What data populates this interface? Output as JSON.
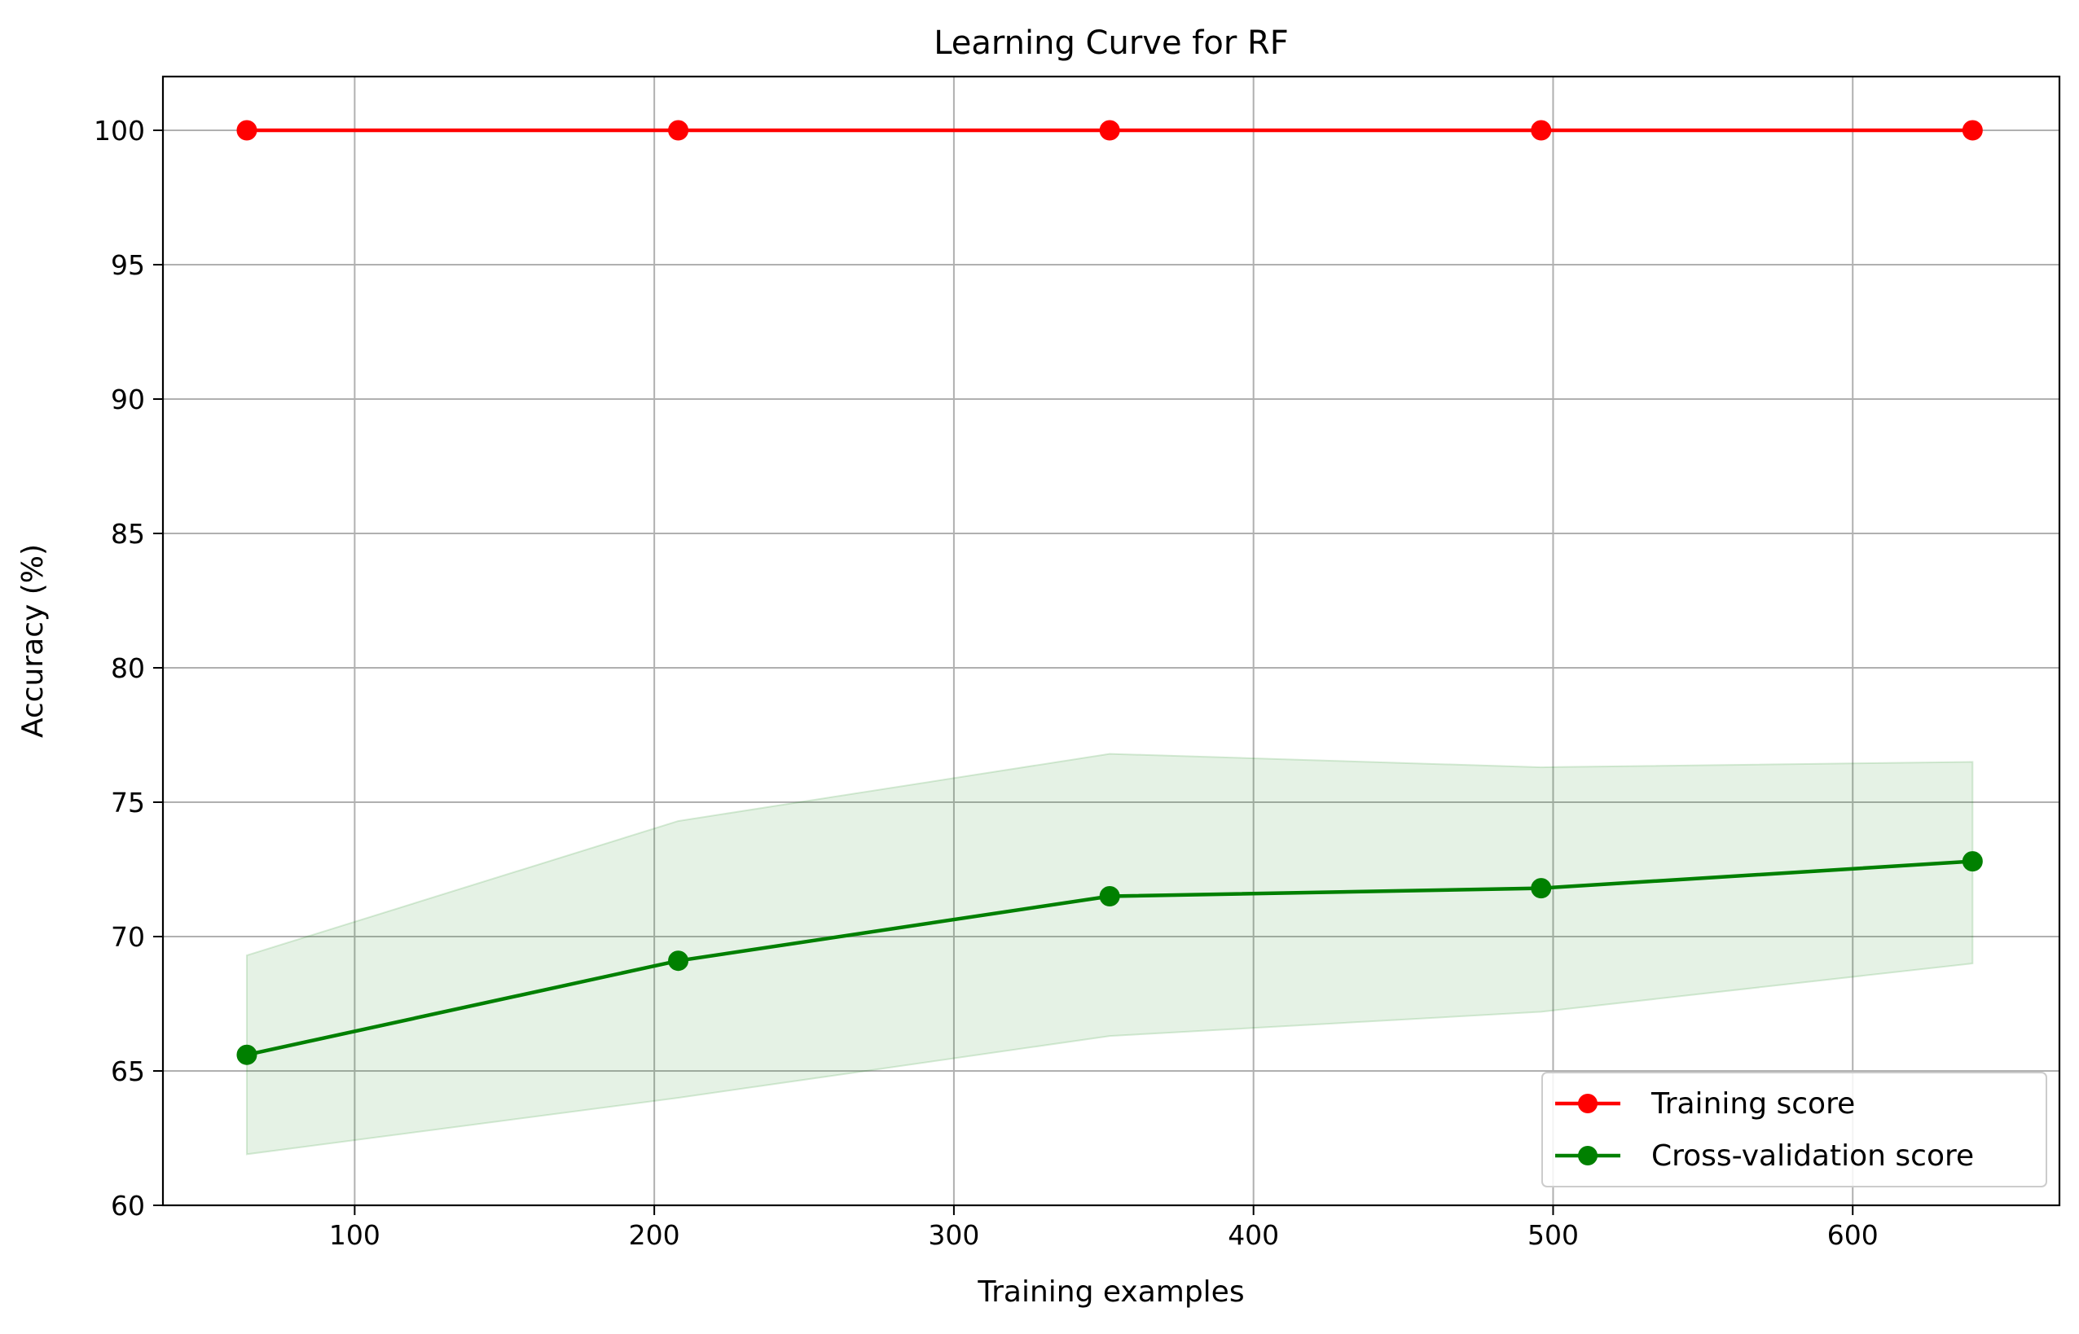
{
  "chart_data": {
    "type": "line",
    "title": "Learning Curve for RF",
    "xlabel": "Training examples",
    "ylabel": "Accuracy (%)",
    "xlim": [
      36,
      669
    ],
    "ylim": [
      60,
      102
    ],
    "xticks": [
      100,
      200,
      300,
      400,
      500,
      600
    ],
    "yticks": [
      60,
      65,
      70,
      75,
      80,
      85,
      90,
      95,
      100
    ],
    "grid": true,
    "legend_position": "lower-right",
    "x": [
      64,
      208,
      352,
      496,
      640
    ],
    "series": [
      {
        "name": "Training score",
        "color": "#ff0000",
        "marker": "circle",
        "values": [
          100,
          100,
          100,
          100,
          100
        ]
      },
      {
        "name": "Cross-validation score",
        "color": "#008000",
        "marker": "circle",
        "values": [
          65.6,
          69.1,
          71.5,
          71.8,
          72.8
        ],
        "band_upper": [
          69.3,
          74.3,
          76.8,
          76.3,
          76.5
        ],
        "band_lower": [
          61.9,
          64.0,
          66.3,
          67.2,
          69.0
        ],
        "band_color": "#008000"
      }
    ]
  }
}
